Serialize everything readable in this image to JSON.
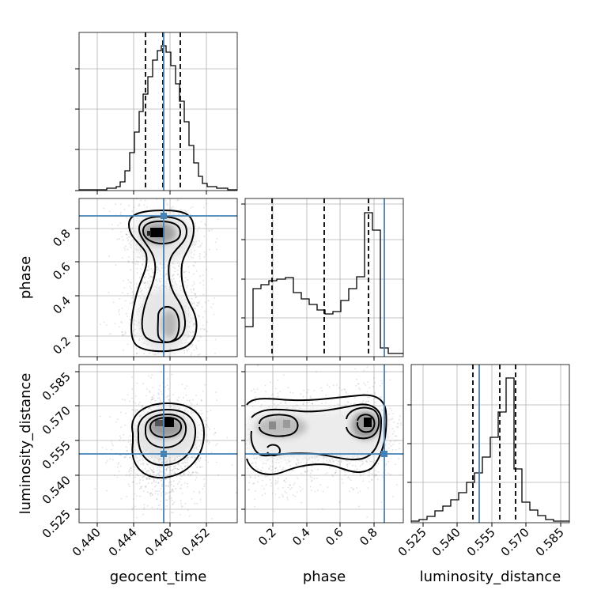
{
  "chart_data": {
    "type": "corner",
    "parameters": [
      "geocent_time",
      "phase",
      "luminosity_distance"
    ],
    "truths": {
      "geocent_time": 0.4474,
      "phase": 0.869,
      "luminosity_distance": 0.5485
    },
    "truth_color": "#4682b4",
    "quantiles": {
      "geocent_time": [
        0.4456,
        0.4474,
        0.4493
      ],
      "phase": [
        0.19,
        0.5,
        0.775
      ],
      "luminosity_distance": [
        0.5445,
        0.5555,
        0.5635
      ]
    },
    "axes": {
      "geocent_time": {
        "range": [
          0.4384,
          0.4557
        ],
        "ticks": [
          0.44,
          0.444,
          0.448,
          0.452
        ],
        "tick_labels": [
          "0.440",
          "0.444",
          "0.448",
          "0.452"
        ]
      },
      "phase": {
        "range": [
          0.0,
          0.94
        ],
        "ticks": [
          0.2,
          0.4,
          0.6,
          0.8
        ],
        "tick_labels": [
          "0.2",
          "0.4",
          "0.6",
          "0.8"
        ]
      },
      "luminosity_distance": {
        "range": [
          0.519,
          0.588
        ],
        "ticks": [
          0.525,
          0.54,
          0.555,
          0.57,
          0.585
        ],
        "tick_labels": [
          "0.525",
          "0.540",
          "0.555",
          "0.570",
          "0.585"
        ]
      }
    },
    "histograms": {
      "geocent_time": {
        "x": [
          0.4393,
          0.4398,
          0.4402,
          0.4406,
          0.4411,
          0.4415,
          0.4419,
          0.4424,
          0.4428,
          0.4432,
          0.4437,
          0.4441,
          0.4445,
          0.445,
          0.4454,
          0.4458,
          0.4463,
          0.4467,
          0.4471,
          0.4476,
          0.448,
          0.4484,
          0.4489,
          0.4493,
          0.4497,
          0.4502,
          0.4506,
          0.451,
          0.4515,
          0.4519,
          0.4523,
          0.4528,
          0.4532,
          0.4536,
          0.4541,
          0.4545,
          0.4549,
          0.4554
        ],
        "counts": [
          0,
          0,
          0,
          0,
          0,
          0,
          0,
          0,
          0,
          2,
          4,
          4,
          7,
          21,
          41,
          63,
          81,
          91,
          96,
          89,
          65,
          45,
          27,
          17,
          7,
          4,
          1,
          1,
          0,
          0,
          0,
          0,
          0,
          0,
          0,
          0,
          0,
          0
        ]
      },
      "phase": {
        "x": [
          0.024,
          0.071,
          0.118,
          0.165,
          0.212,
          0.259,
          0.306,
          0.353,
          0.4,
          0.447,
          0.494,
          0.541,
          0.588,
          0.635,
          0.682,
          0.729,
          0.776,
          0.823,
          0.87,
          0.917
        ],
        "counts": [
          20,
          44,
          46,
          49,
          49,
          51,
          43,
          38,
          33,
          30,
          29,
          31,
          31,
          36,
          44,
          50,
          92,
          79,
          2,
          0
        ]
      },
      "luminosity_distance": {
        "x": [
          0.5207,
          0.5242,
          0.5276,
          0.5311,
          0.5345,
          0.538,
          0.5414,
          0.5449,
          0.5483,
          0.5518,
          0.5552,
          0.5587,
          0.5621,
          0.5656,
          0.569,
          0.5725,
          0.5759,
          0.5794,
          0.5828,
          0.5863
        ],
        "counts": [
          1,
          2,
          5,
          8,
          12,
          15,
          20,
          24,
          30,
          36,
          46,
          69,
          78,
          91,
          30,
          13,
          9,
          5,
          2,
          1
        ]
      }
    },
    "density_modes": {
      "geocent_time_vs_phase": [
        {
          "x": 0.4474,
          "y": 0.77
        },
        {
          "x": 0.4478,
          "y": 0.22
        }
      ],
      "geocent_time_vs_luminosity_distance": [
        {
          "x": 0.4479,
          "y": 0.5625
        }
      ],
      "phase_vs_luminosity_distance": [
        {
          "x": 0.25,
          "y": 0.562
        },
        {
          "x": 0.77,
          "y": 0.5625
        }
      ]
    },
    "grid": true,
    "xlabels": [
      "geocent_time",
      "phase",
      "luminosity_distance"
    ],
    "ylabels": [
      "phase",
      "luminosity_distance"
    ]
  }
}
